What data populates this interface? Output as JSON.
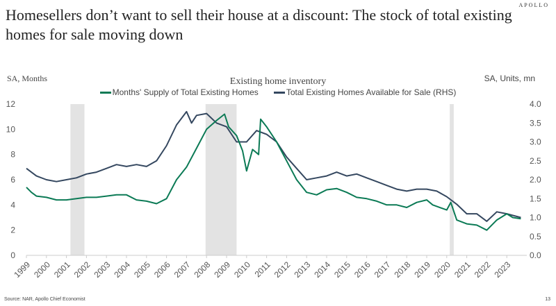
{
  "brand": "APOLLO",
  "title": "Homesellers don’t want to sell their house at a discount: The stock of total existing homes for sale moving down",
  "source": "Source: NAR, Apollo Chief Economist",
  "page_number": "13",
  "chart_data": {
    "type": "line",
    "title": "Existing home inventory",
    "ylabel_left": "SA, Months",
    "ylabel_right": "SA, Units, mn",
    "xlim": [
      1999,
      2024
    ],
    "ylim_left": [
      0,
      12
    ],
    "ylim_right": [
      0,
      4
    ],
    "x_ticks": [
      "1999",
      "2000",
      "2001",
      "2002",
      "2003",
      "2004",
      "2005",
      "2006",
      "2007",
      "2008",
      "2009",
      "2010",
      "2011",
      "2012",
      "2013",
      "2014",
      "2015",
      "2016",
      "2017",
      "2018",
      "2019",
      "2020",
      "2021",
      "2022",
      "2023"
    ],
    "y_ticks_left": [
      "0",
      "2",
      "4",
      "6",
      "8",
      "10",
      "12"
    ],
    "y_ticks_right": [
      "0.0",
      "0.5",
      "1.0",
      "1.5",
      "2.0",
      "2.5",
      "3.0",
      "3.5",
      "4.0"
    ],
    "grid": false,
    "legend_placement": "top",
    "recessions": [
      [
        2001.2,
        2001.9
      ],
      [
        2007.95,
        2009.5
      ],
      [
        2020.15,
        2020.35
      ]
    ],
    "series": [
      {
        "name": "Months' Supply of Total Existing Homes",
        "axis": "left",
        "color": "#0b7a55",
        "x": [
          1999,
          1999.25,
          1999.5,
          2000,
          2000.5,
          2001,
          2001.5,
          2002,
          2002.5,
          2003,
          2003.5,
          2004,
          2004.5,
          2005,
          2005.5,
          2006,
          2006.5,
          2007,
          2007.5,
          2008,
          2008.5,
          2008.9,
          2009.1,
          2009.5,
          2009.8,
          2010.0,
          2010.3,
          2010.6,
          2010.7,
          2011,
          2011.5,
          2012,
          2012.5,
          2013,
          2013.5,
          2014,
          2014.5,
          2015,
          2015.5,
          2016,
          2016.5,
          2017,
          2017.5,
          2018,
          2018.5,
          2019,
          2019.3,
          2020,
          2020.2,
          2020.5,
          2021,
          2021.5,
          2022,
          2022.5,
          2023,
          2023.3,
          2023.7
        ],
        "values": [
          5.4,
          5.0,
          4.7,
          4.6,
          4.4,
          4.4,
          4.5,
          4.6,
          4.6,
          4.7,
          4.8,
          4.8,
          4.4,
          4.3,
          4.1,
          4.5,
          6.0,
          7.0,
          8.5,
          10.0,
          10.7,
          11.2,
          10.2,
          9.5,
          8.3,
          6.7,
          8.4,
          8.0,
          10.8,
          10.2,
          9.0,
          7.5,
          6.0,
          5.0,
          4.8,
          5.2,
          5.3,
          5.0,
          4.6,
          4.5,
          4.3,
          4.0,
          4.0,
          3.8,
          4.2,
          4.4,
          4.0,
          3.6,
          4.2,
          2.8,
          2.5,
          2.4,
          2.0,
          2.8,
          3.3,
          3.0,
          2.9
        ]
      },
      {
        "name": "Total Existing Homes Available for Sale (RHS)",
        "axis": "right",
        "color": "#34475f",
        "x": [
          1999,
          1999.5,
          2000,
          2000.5,
          2001,
          2001.5,
          2002,
          2002.5,
          2003,
          2003.5,
          2004,
          2004.5,
          2005,
          2005.5,
          2006,
          2006.5,
          2007,
          2007.25,
          2007.5,
          2008,
          2008.5,
          2009,
          2009.5,
          2010,
          2010.5,
          2011,
          2011.5,
          2012,
          2012.5,
          2013,
          2013.5,
          2014,
          2014.5,
          2015,
          2015.5,
          2016,
          2016.5,
          2017,
          2017.5,
          2018,
          2018.5,
          2019,
          2019.5,
          2020,
          2020.5,
          2021,
          2021.5,
          2022,
          2022.5,
          2023,
          2023.7
        ],
        "values": [
          2.3,
          2.1,
          2.0,
          1.95,
          2.0,
          2.05,
          2.15,
          2.2,
          2.3,
          2.4,
          2.35,
          2.4,
          2.35,
          2.5,
          2.9,
          3.45,
          3.8,
          3.5,
          3.7,
          3.75,
          3.5,
          3.4,
          3.0,
          3.0,
          3.3,
          3.2,
          3.0,
          2.6,
          2.3,
          2.0,
          2.05,
          2.1,
          2.2,
          2.1,
          2.15,
          2.05,
          1.95,
          1.85,
          1.75,
          1.7,
          1.75,
          1.75,
          1.7,
          1.55,
          1.35,
          1.1,
          1.1,
          0.9,
          1.15,
          1.1,
          1.0
        ]
      }
    ]
  }
}
